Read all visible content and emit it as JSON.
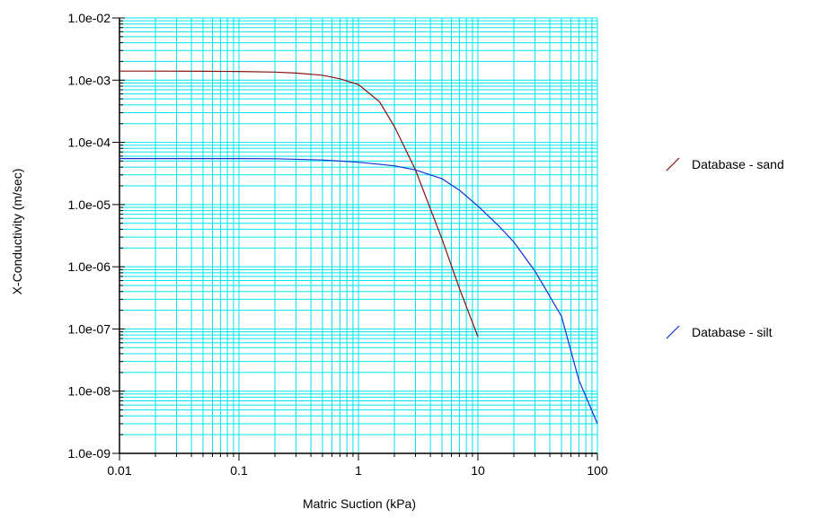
{
  "chart_data": {
    "type": "line",
    "xlabel": "Matric Suction (kPa)",
    "ylabel": "X-Conductivity (m/sec)",
    "x_scale": "log",
    "y_scale": "log",
    "xlim": [
      0.01,
      100
    ],
    "ylim": [
      1e-09,
      0.01
    ],
    "grid": true,
    "grid_color": "#00e5ee",
    "legend_position": "right",
    "x_tick_labels": [
      "0.01",
      "0.1",
      "1",
      "10",
      "100"
    ],
    "y_tick_labels": [
      "1.0e-09",
      "1.0e-08",
      "1.0e-07",
      "1.0e-06",
      "1.0e-05",
      "1.0e-04",
      "1.0e-03",
      "1.0e-02"
    ],
    "series": [
      {
        "name": "Database - sand",
        "color": "#8b1010",
        "x": [
          0.01,
          0.02,
          0.05,
          0.1,
          0.2,
          0.3,
          0.5,
          0.7,
          1,
          1.5,
          2,
          3,
          4,
          5,
          7,
          10
        ],
        "y": [
          0.0014,
          0.0014,
          0.00139,
          0.00138,
          0.00135,
          0.0013,
          0.0012,
          0.00105,
          0.00085,
          0.00045,
          0.00018,
          3.6e-05,
          8.5e-06,
          2.8e-06,
          4.5e-07,
          7.5e-08
        ]
      },
      {
        "name": "Database - silt",
        "color": "#1030d0",
        "x": [
          0.01,
          0.05,
          0.1,
          0.2,
          0.5,
          1,
          2,
          3,
          5,
          7,
          10,
          15,
          20,
          30,
          50,
          70,
          100
        ],
        "y": [
          5.5e-05,
          5.5e-05,
          5.5e-05,
          5.45e-05,
          5.2e-05,
          4.8e-05,
          4.2e-05,
          3.6e-05,
          2.6e-05,
          1.7e-05,
          9.5e-06,
          4.5e-06,
          2.5e-06,
          8.5e-07,
          1.6e-07,
          1.5e-08,
          3e-09
        ]
      }
    ]
  }
}
